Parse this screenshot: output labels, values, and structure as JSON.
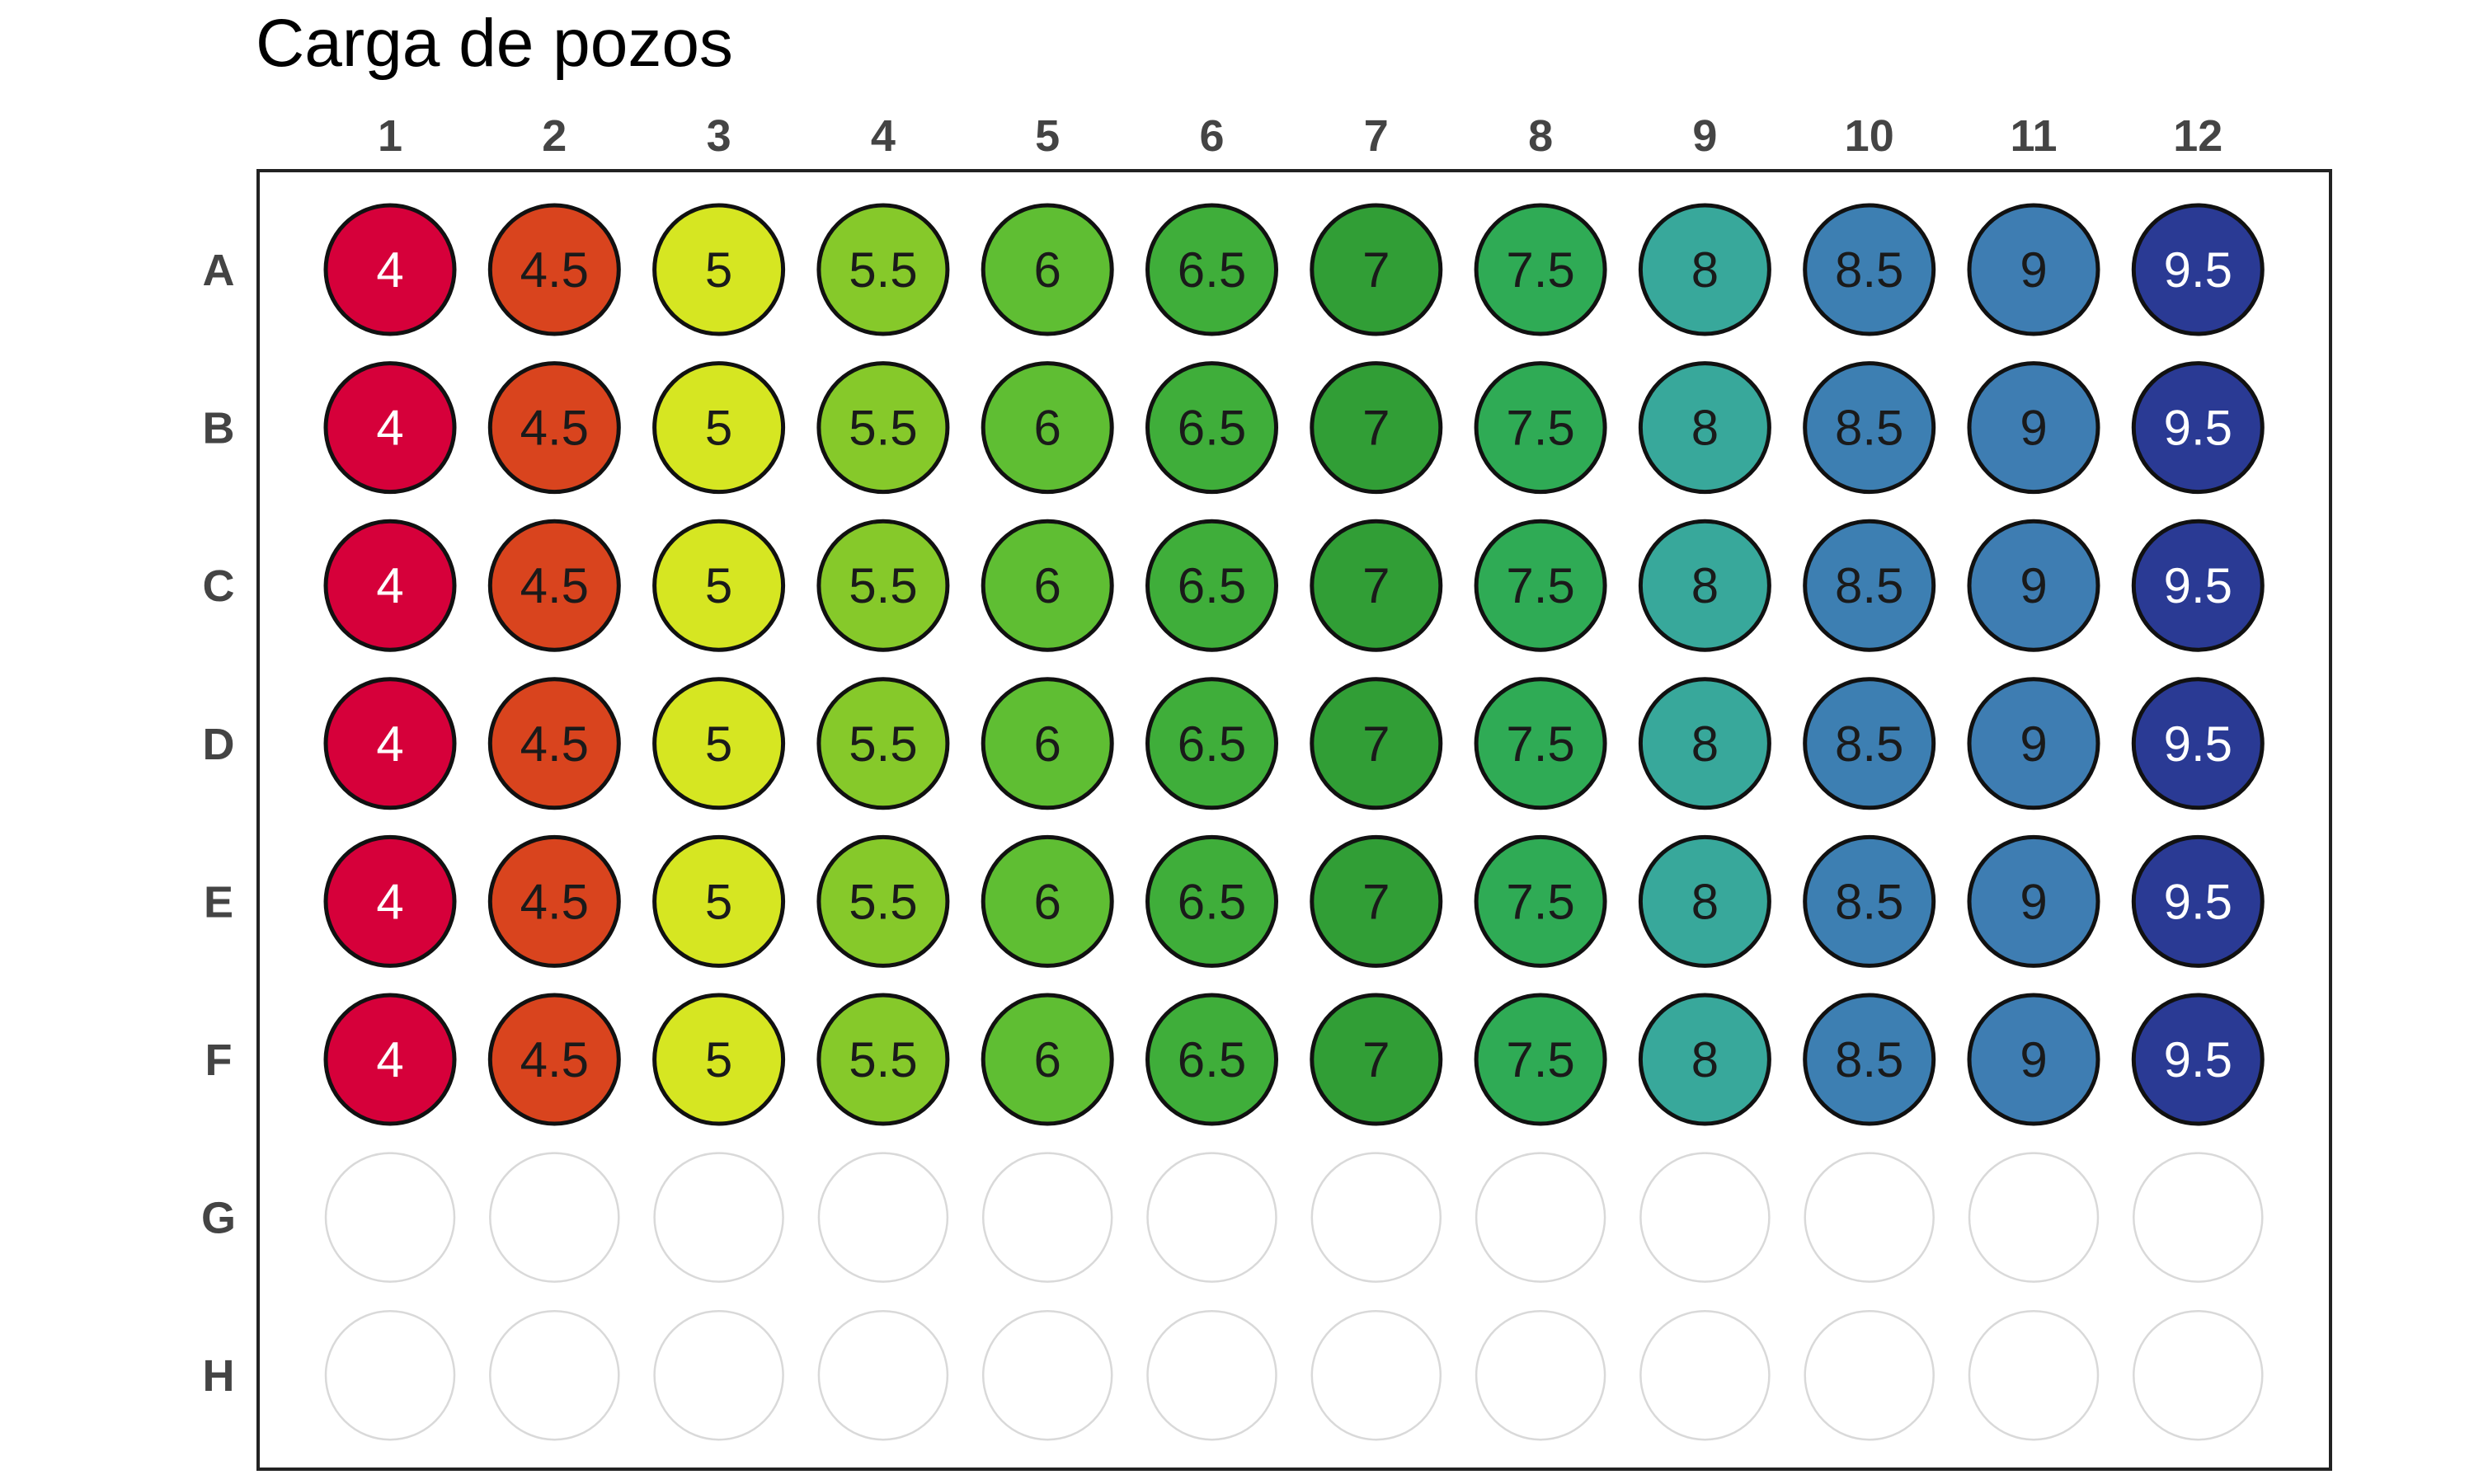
{
  "title": "Carga de pozos",
  "columns": [
    "1",
    "2",
    "3",
    "4",
    "5",
    "6",
    "7",
    "8",
    "9",
    "10",
    "11",
    "12"
  ],
  "rows": [
    "A",
    "B",
    "C",
    "D",
    "E",
    "F",
    "G",
    "H"
  ],
  "filled_rows": [
    "A",
    "B",
    "C",
    "D",
    "E",
    "F"
  ],
  "column_values": [
    "4",
    "4.5",
    "5",
    "5.5",
    "6",
    "6.5",
    "7",
    "7.5",
    "8",
    "8.5",
    "9",
    "9.5"
  ],
  "column_colors": [
    "#d6003a",
    "#d9441e",
    "#d6e622",
    "#86c92a",
    "#5fbe33",
    "#3fae3a",
    "#319e36",
    "#2fab55",
    "#38a89b",
    "#3d7fb2",
    "#3e7db2",
    "#2a3a94"
  ],
  "label_colors": [
    "#ffffff",
    "#1a1a1a",
    "#1a1a1a",
    "#1a1a1a",
    "#1a1a1a",
    "#1a1a1a",
    "#1a1a1a",
    "#1a1a1a",
    "#1a1a1a",
    "#1a1a1a",
    "#1a1a1a",
    "#ffffff"
  ],
  "colors": {
    "title": "#000000",
    "axis_label": "#444444",
    "plate_border": "#222222",
    "well_border": "#111111",
    "empty_well_border": "#d9d9d9"
  }
}
